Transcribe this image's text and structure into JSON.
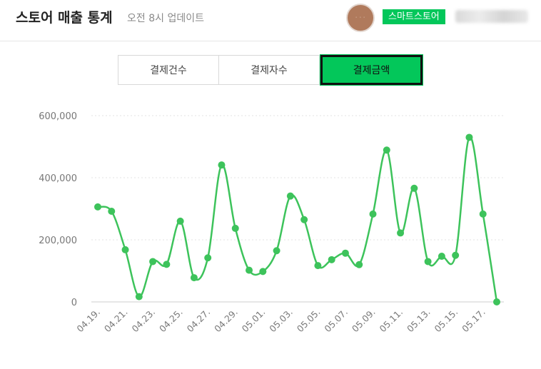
{
  "header": {
    "title": "스토어 매출 통계",
    "update_label": "오전 8시 업데이트",
    "store_type": "스마트스토어"
  },
  "tabs": [
    {
      "label": "결제건수",
      "active": false
    },
    {
      "label": "결제자수",
      "active": false
    },
    {
      "label": "결제금액",
      "active": true
    }
  ],
  "colors": {
    "accent": "#03c75a",
    "line": "#3dc35b"
  },
  "chart_data": {
    "type": "line",
    "title": "",
    "xlabel": "",
    "ylabel": "",
    "ylim": [
      0,
      600000
    ],
    "yticks": [
      0,
      200000,
      400000,
      600000
    ],
    "ytick_labels": [
      "0",
      "200,000",
      "400,000",
      "600,000"
    ],
    "grid": true,
    "x": [
      "04.19.",
      "04.20.",
      "04.21.",
      "04.22.",
      "04.23.",
      "04.24.",
      "04.25.",
      "04.26.",
      "04.27.",
      "04.28.",
      "04.29.",
      "04.30.",
      "05.01.",
      "05.02.",
      "05.03.",
      "05.04.",
      "05.05.",
      "05.06.",
      "05.07.",
      "05.08.",
      "05.09.",
      "05.10.",
      "05.11.",
      "05.12.",
      "05.13.",
      "05.14.",
      "05.15.",
      "05.16.",
      "05.17.",
      "05.18."
    ],
    "xtick_labels": [
      "04.19.",
      "04.21.",
      "04.23.",
      "04.25.",
      "04.27.",
      "04.29.",
      "05.01.",
      "05.03.",
      "05.05.",
      "05.07.",
      "05.09.",
      "05.11.",
      "05.13.",
      "05.15.",
      "05.17."
    ],
    "values": [
      306000,
      292000,
      168000,
      17000,
      130000,
      121000,
      260000,
      78000,
      142000,
      441000,
      237000,
      102000,
      98000,
      165000,
      341000,
      265000,
      117000,
      136000,
      157000,
      120000,
      283000,
      489000,
      222000,
      366000,
      130000,
      147000,
      150000,
      530000,
      283000,
      0
    ]
  }
}
